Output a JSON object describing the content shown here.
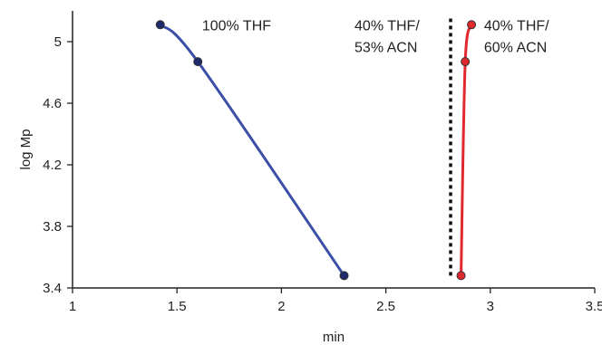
{
  "chart_data": {
    "type": "line",
    "xlabel": "min",
    "ylabel": "log Mp",
    "xlim": [
      1,
      3.5
    ],
    "ylim": [
      3.4,
      5.2
    ],
    "x_ticks": [
      1,
      1.5,
      2,
      2.5,
      3,
      3.5
    ],
    "x_tick_labels": [
      "1",
      "1.5",
      "2",
      "2.5",
      "3",
      "3.5"
    ],
    "y_ticks": [
      3.4,
      3.8,
      4.2,
      4.6,
      5
    ],
    "y_tick_labels": [
      "3.4",
      "3.8",
      "4.2",
      "4.6",
      "5"
    ],
    "grid": false,
    "series": [
      {
        "points": [
          [
            1.42,
            5.11
          ],
          [
            1.6,
            4.87
          ],
          [
            2.3,
            3.48
          ]
        ],
        "color": "#3c4fa6",
        "marker_color": "#1f2a6b",
        "line_style": "solid"
      },
      {
        "points": [
          [
            2.81,
            3.48
          ],
          [
            2.81,
            5.15
          ]
        ],
        "color": "#111111",
        "line_style": "dotted",
        "markers": false
      },
      {
        "points": [
          [
            2.86,
            3.48
          ],
          [
            2.88,
            4.87
          ],
          [
            2.91,
            5.11
          ]
        ],
        "color": "#e0282e",
        "marker_color": "#e0282e",
        "line_style": "solid"
      }
    ],
    "annotations": [
      {
        "text_lines": [
          "100% THF"
        ],
        "x": 1.62,
        "y": 5.11
      },
      {
        "text_lines": [
          "40% THF/",
          "53% ACN"
        ],
        "x": 2.35,
        "y": 5.11
      },
      {
        "text_lines": [
          "40% THF/",
          "60% ACN"
        ],
        "x": 2.97,
        "y": 5.11
      }
    ]
  }
}
